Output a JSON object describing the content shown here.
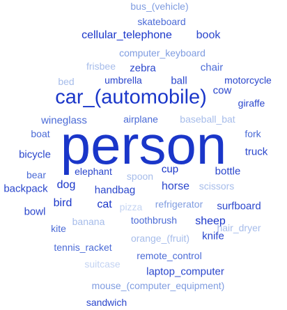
{
  "words": [
    {
      "text": "person",
      "color": "#1a36c9"
    },
    {
      "text": "car_(automobile)",
      "color": "#1a36c9"
    },
    {
      "text": "cellular_telephone",
      "color": "#1a36c9"
    },
    {
      "text": "bus_(vehicle)",
      "color": "#7f9ce0"
    },
    {
      "text": "skateboard",
      "color": "#4a6ad6"
    },
    {
      "text": "book",
      "color": "#2a46cc"
    },
    {
      "text": "computer_keyboard",
      "color": "#7f9ce0"
    },
    {
      "text": "frisbee",
      "color": "#a6bcea"
    },
    {
      "text": "zebra",
      "color": "#2a46cc"
    },
    {
      "text": "chair",
      "color": "#4a6ad6"
    },
    {
      "text": "bed",
      "color": "#a6bcea"
    },
    {
      "text": "umbrella",
      "color": "#2a46cc"
    },
    {
      "text": "ball",
      "color": "#2a46cc"
    },
    {
      "text": "motorcycle",
      "color": "#2a46cc"
    },
    {
      "text": "cow",
      "color": "#2a46cc"
    },
    {
      "text": "giraffe",
      "color": "#2a46cc"
    },
    {
      "text": "wineglass",
      "color": "#4a6ad6"
    },
    {
      "text": "airplane",
      "color": "#4a6ad6"
    },
    {
      "text": "baseball_bat",
      "color": "#a6bcea"
    },
    {
      "text": "boat",
      "color": "#4a6ad6"
    },
    {
      "text": "fork",
      "color": "#4a6ad6"
    },
    {
      "text": "bicycle",
      "color": "#2a46cc"
    },
    {
      "text": "truck",
      "color": "#2a46cc"
    },
    {
      "text": "bear",
      "color": "#4a6ad6"
    },
    {
      "text": "elephant",
      "color": "#2a46cc"
    },
    {
      "text": "spoon",
      "color": "#a6bcea"
    },
    {
      "text": "cup",
      "color": "#1a36c9"
    },
    {
      "text": "bottle",
      "color": "#2a46cc"
    },
    {
      "text": "backpack",
      "color": "#2a46cc"
    },
    {
      "text": "dog",
      "color": "#1a36c9"
    },
    {
      "text": "handbag",
      "color": "#2a46cc"
    },
    {
      "text": "horse",
      "color": "#2a46cc"
    },
    {
      "text": "scissors",
      "color": "#a6bcea"
    },
    {
      "text": "bowl",
      "color": "#2a46cc"
    },
    {
      "text": "bird",
      "color": "#1a36c9"
    },
    {
      "text": "cat",
      "color": "#1a36c9"
    },
    {
      "text": "pizza",
      "color": "#c3d3f2"
    },
    {
      "text": "refrigerator",
      "color": "#7f9ce0"
    },
    {
      "text": "surfboard",
      "color": "#2a46cc"
    },
    {
      "text": "kite",
      "color": "#4a6ad6"
    },
    {
      "text": "banana",
      "color": "#a6bcea"
    },
    {
      "text": "toothbrush",
      "color": "#4a6ad6"
    },
    {
      "text": "sheep",
      "color": "#1a36c9"
    },
    {
      "text": "hair_dryer",
      "color": "#a6bcea"
    },
    {
      "text": "orange_(fruit)",
      "color": "#a6bcea"
    },
    {
      "text": "knife",
      "color": "#2a46cc"
    },
    {
      "text": "tennis_racket",
      "color": "#4a6ad6"
    },
    {
      "text": "remote_control",
      "color": "#4a6ad6"
    },
    {
      "text": "suitcase",
      "color": "#c3d3f2"
    },
    {
      "text": "laptop_computer",
      "color": "#2a46cc"
    },
    {
      "text": "mouse_(computer_equipment)",
      "color": "#7f9ce0"
    },
    {
      "text": "sandwich",
      "color": "#2a46cc"
    }
  ]
}
